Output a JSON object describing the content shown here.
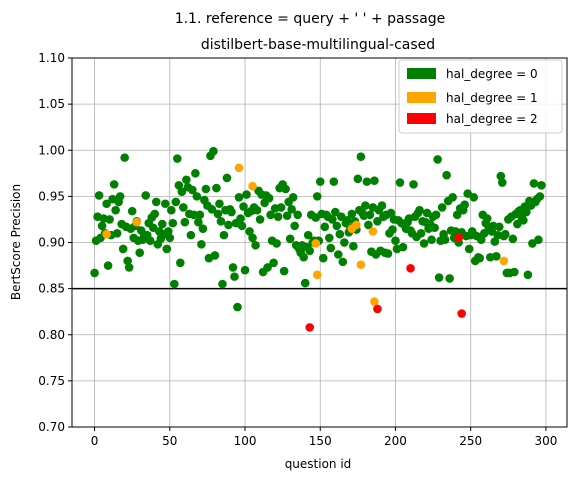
{
  "chart_data": {
    "type": "scatter",
    "title": "1.1. reference = query + ' ' + passage",
    "subtitle": "distilbert-base-multilingual-cased",
    "xlabel": "question id",
    "ylabel": "BertScore Precision",
    "xlim": [
      -15,
      314
    ],
    "ylim": [
      0.7,
      1.1
    ],
    "xticks": [
      0,
      50,
      100,
      150,
      200,
      250,
      300
    ],
    "yticks": [
      0.7,
      0.75,
      0.8,
      0.85,
      0.9,
      0.95,
      1.0,
      1.05,
      1.1
    ],
    "grid": true,
    "legend_position": "top-right",
    "hline": {
      "y": 0.85,
      "color": "#000000"
    },
    "series": [
      {
        "name": "hal_degree = 0",
        "color": "#008000",
        "points": [
          [
            0,
            0.867
          ],
          [
            1,
            0.902
          ],
          [
            2,
            0.928
          ],
          [
            3,
            0.951
          ],
          [
            4,
            0.905
          ],
          [
            5,
            0.918
          ],
          [
            6,
            0.926
          ],
          [
            7,
            0.91
          ],
          [
            8,
            0.942
          ],
          [
            9,
            0.875
          ],
          [
            10,
            0.925
          ],
          [
            11,
            0.908
          ],
          [
            12,
            0.947
          ],
          [
            13,
            0.963
          ],
          [
            14,
            0.935
          ],
          [
            15,
            0.91
          ],
          [
            16,
            0.944
          ],
          [
            17,
            0.95
          ],
          [
            18,
            0.92
          ],
          [
            19,
            0.893
          ],
          [
            20,
            0.992
          ],
          [
            21,
            0.917
          ],
          [
            22,
            0.88
          ],
          [
            23,
            0.873
          ],
          [
            24,
            0.915
          ],
          [
            25,
            0.934
          ],
          [
            26,
            0.905
          ],
          [
            27,
            0.918
          ],
          [
            28,
            0.923
          ],
          [
            29,
            0.902
          ],
          [
            30,
            0.889
          ],
          [
            31,
            0.913
          ],
          [
            32,
            0.903
          ],
          [
            33,
            0.908
          ],
          [
            34,
            0.951
          ],
          [
            35,
            0.908
          ],
          [
            36,
            0.921
          ],
          [
            37,
            0.902
          ],
          [
            38,
            0.927
          ],
          [
            39,
            0.916
          ],
          [
            40,
            0.931
          ],
          [
            41,
            0.944
          ],
          [
            42,
            0.898
          ],
          [
            43,
            0.912
          ],
          [
            44,
            0.904
          ],
          [
            45,
            0.92
          ],
          [
            46,
            0.909
          ],
          [
            47,
            0.942
          ],
          [
            48,
            0.893
          ],
          [
            49,
            0.912
          ],
          [
            50,
            0.905
          ],
          [
            51,
            0.935
          ],
          [
            52,
            0.921
          ],
          [
            53,
            0.855
          ],
          [
            54,
            0.944
          ],
          [
            55,
            0.991
          ],
          [
            56,
            0.962
          ],
          [
            57,
            0.878
          ],
          [
            58,
            0.955
          ],
          [
            59,
            0.938
          ],
          [
            60,
            0.922
          ],
          [
            61,
            0.968
          ],
          [
            62,
            0.96
          ],
          [
            63,
            0.931
          ],
          [
            64,
            0.908
          ],
          [
            65,
            0.957
          ],
          [
            66,
            0.93
          ],
          [
            67,
            0.975
          ],
          [
            68,
            0.95
          ],
          [
            69,
            0.922
          ],
          [
            70,
            0.93
          ],
          [
            71,
            0.898
          ],
          [
            72,
            0.915
          ],
          [
            73,
            0.946
          ],
          [
            74,
            0.958
          ],
          [
            75,
            0.94
          ],
          [
            76,
            0.883
          ],
          [
            77,
            0.994
          ],
          [
            78,
            0.936
          ],
          [
            79,
            0.999
          ],
          [
            80,
            0.886
          ],
          [
            81,
            0.959
          ],
          [
            82,
            0.931
          ],
          [
            83,
            0.942
          ],
          [
            84,
            0.923
          ],
          [
            85,
            0.855
          ],
          [
            86,
            0.908
          ],
          [
            87,
            0.935
          ],
          [
            88,
            0.97
          ],
          [
            89,
            0.919
          ],
          [
            90,
            0.936
          ],
          [
            91,
            0.933
          ],
          [
            92,
            0.873
          ],
          [
            93,
            0.863
          ],
          [
            94,
            0.921
          ],
          [
            95,
            0.83
          ],
          [
            96,
            0.949
          ],
          [
            97,
            0.926
          ],
          [
            98,
            0.918
          ],
          [
            99,
            0.939
          ],
          [
            100,
            0.87
          ],
          [
            101,
            0.952
          ],
          [
            102,
            0.932
          ],
          [
            103,
            0.912
          ],
          [
            104,
            0.934
          ],
          [
            105,
            0.905
          ],
          [
            106,
            0.938
          ],
          [
            107,
            0.897
          ],
          [
            108,
            0.935
          ],
          [
            109,
            0.956
          ],
          [
            110,
            0.925
          ],
          [
            111,
            0.952
          ],
          [
            112,
            0.868
          ],
          [
            113,
            0.943
          ],
          [
            114,
            0.951
          ],
          [
            115,
            0.873
          ],
          [
            116,
            0.948
          ],
          [
            117,
            0.93
          ],
          [
            118,
            0.902
          ],
          [
            119,
            0.878
          ],
          [
            120,
            0.937
          ],
          [
            121,
            0.899
          ],
          [
            122,
            0.928
          ],
          [
            123,
            0.959
          ],
          [
            124,
            0.938
          ],
          [
            125,
            0.963
          ],
          [
            126,
            0.869
          ],
          [
            127,
            0.958
          ],
          [
            128,
            0.929
          ],
          [
            129,
            0.944
          ],
          [
            130,
            0.904
          ],
          [
            131,
            0.936
          ],
          [
            132,
            0.949
          ],
          [
            133,
            0.918
          ],
          [
            134,
            0.897
          ],
          [
            135,
            0.93
          ],
          [
            136,
            0.893
          ],
          [
            137,
            0.889
          ],
          [
            138,
            0.897
          ],
          [
            139,
            0.884
          ],
          [
            140,
            0.856
          ],
          [
            141,
            0.895
          ],
          [
            142,
            0.908
          ],
          [
            143,
            0.891
          ],
          [
            144,
            0.93
          ],
          [
            145,
            0.9
          ],
          [
            146,
            0.902
          ],
          [
            147,
            0.927
          ],
          [
            148,
            0.95
          ],
          [
            149,
            0.902
          ],
          [
            150,
            0.966
          ],
          [
            151,
            0.931
          ],
          [
            152,
            0.883
          ],
          [
            153,
            0.917
          ],
          [
            154,
            0.93
          ],
          [
            155,
            0.928
          ],
          [
            156,
            0.905
          ],
          [
            157,
            0.894
          ],
          [
            158,
            0.925
          ],
          [
            159,
            0.966
          ],
          [
            160,
            0.933
          ],
          [
            161,
            0.918
          ],
          [
            162,
            0.887
          ],
          [
            163,
            0.909
          ],
          [
            164,
            0.928
          ],
          [
            165,
            0.879
          ],
          [
            166,
            0.9
          ],
          [
            167,
            0.921
          ],
          [
            168,
            0.924
          ],
          [
            169,
            0.911
          ],
          [
            170,
            0.916
          ],
          [
            171,
            0.931
          ],
          [
            172,
            0.896
          ],
          [
            173,
            0.923
          ],
          [
            174,
            0.914
          ],
          [
            175,
            0.969
          ],
          [
            176,
            0.935
          ],
          [
            177,
            0.993
          ],
          [
            178,
            0.932
          ],
          [
            179,
            0.929
          ],
          [
            180,
            0.94
          ],
          [
            181,
            0.966
          ],
          [
            182,
            0.919
          ],
          [
            183,
            0.93
          ],
          [
            184,
            0.89
          ],
          [
            185,
            0.938
          ],
          [
            186,
            0.967
          ],
          [
            187,
            0.887
          ],
          [
            188,
            0.923
          ],
          [
            189,
            0.935
          ],
          [
            190,
            0.891
          ],
          [
            191,
            0.94
          ],
          [
            192,
            0.928
          ],
          [
            193,
            0.889
          ],
          [
            194,
            0.93
          ],
          [
            195,
            0.888
          ],
          [
            196,
            0.91
          ],
          [
            197,
            0.932
          ],
          [
            198,
            0.914
          ],
          [
            199,
            0.925
          ],
          [
            200,
            0.902
          ],
          [
            201,
            0.893
          ],
          [
            202,
            0.924
          ],
          [
            203,
            0.965
          ],
          [
            204,
            0.921
          ],
          [
            205,
            0.895
          ],
          [
            206,
            0.919
          ],
          [
            207,
            0.915
          ],
          [
            208,
            0.922
          ],
          [
            209,
            0.926
          ],
          [
            210,
            0.913
          ],
          [
            211,
            0.91
          ],
          [
            212,
            0.963
          ],
          [
            213,
            0.928
          ],
          [
            214,
            0.906
          ],
          [
            215,
            0.932
          ],
          [
            216,
            0.935
          ],
          [
            217,
            0.91
          ],
          [
            218,
            0.923
          ],
          [
            219,
            0.899
          ],
          [
            220,
            0.922
          ],
          [
            221,
            0.932
          ],
          [
            222,
            0.915
          ],
          [
            223,
            0.92
          ],
          [
            224,
            0.903
          ],
          [
            225,
            0.928
          ],
          [
            226,
            0.916
          ],
          [
            227,
            0.93
          ],
          [
            228,
            0.99
          ],
          [
            229,
            0.862
          ],
          [
            230,
            0.902
          ],
          [
            231,
            0.938
          ],
          [
            232,
            0.909
          ],
          [
            233,
            0.903
          ],
          [
            234,
            0.973
          ],
          [
            235,
            0.945
          ],
          [
            236,
            0.861
          ],
          [
            237,
            0.913
          ],
          [
            238,
            0.949
          ],
          [
            239,
            0.905
          ],
          [
            240,
            0.912
          ],
          [
            241,
            0.93
          ],
          [
            242,
            0.9
          ],
          [
            243,
            0.937
          ],
          [
            244,
            0.911
          ],
          [
            245,
            0.935
          ],
          [
            246,
            0.941
          ],
          [
            247,
            0.907
          ],
          [
            248,
            0.953
          ],
          [
            249,
            0.893
          ],
          [
            250,
            0.908
          ],
          [
            251,
            0.912
          ],
          [
            252,
            0.949
          ],
          [
            253,
            0.88
          ],
          [
            254,
            0.907
          ],
          [
            255,
            0.884
          ],
          [
            256,
            0.883
          ],
          [
            257,
            0.903
          ],
          [
            258,
            0.93
          ],
          [
            259,
            0.91
          ],
          [
            260,
            0.921
          ],
          [
            261,
            0.926
          ],
          [
            262,
            0.916
          ],
          [
            263,
            0.884
          ],
          [
            264,
            0.912
          ],
          [
            265,
            0.918
          ],
          [
            266,
            0.901
          ],
          [
            267,
            0.885
          ],
          [
            268,
            0.908
          ],
          [
            269,
            0.917
          ],
          [
            270,
            0.972
          ],
          [
            271,
            0.965
          ],
          [
            272,
            0.907
          ],
          [
            273,
            0.909
          ],
          [
            274,
            0.867
          ],
          [
            275,
            0.925
          ],
          [
            276,
            0.867
          ],
          [
            277,
            0.928
          ],
          [
            278,
            0.904
          ],
          [
            279,
            0.868
          ],
          [
            280,
            0.931
          ],
          [
            281,
            0.92
          ],
          [
            282,
            0.934
          ],
          [
            283,
            0.935
          ],
          [
            284,
            0.927
          ],
          [
            285,
            0.924
          ],
          [
            286,
            0.939
          ],
          [
            287,
            0.933
          ],
          [
            288,
            0.865
          ],
          [
            289,
            0.945
          ],
          [
            290,
            0.94
          ],
          [
            291,
            0.899
          ],
          [
            292,
            0.964
          ],
          [
            293,
            0.944
          ],
          [
            294,
            0.947
          ],
          [
            295,
            0.903
          ],
          [
            296,
            0.95
          ],
          [
            297,
            0.962
          ]
        ]
      },
      {
        "name": "hal_degree = 1",
        "color": "#FFA500",
        "points": [
          [
            8,
            0.909
          ],
          [
            28,
            0.922
          ],
          [
            96,
            0.981
          ],
          [
            105,
            0.961
          ],
          [
            147,
            0.899
          ],
          [
            148,
            0.865
          ],
          [
            171,
            0.915
          ],
          [
            174,
            0.919
          ],
          [
            177,
            0.876
          ],
          [
            185,
            0.912
          ],
          [
            186,
            0.836
          ],
          [
            272,
            0.88
          ]
        ]
      },
      {
        "name": "hal_degree = 2",
        "color": "#FF0000",
        "points": [
          [
            143,
            0.808
          ],
          [
            188,
            0.828
          ],
          [
            210,
            0.872
          ],
          [
            242,
            0.905
          ],
          [
            244,
            0.823
          ]
        ]
      }
    ]
  }
}
